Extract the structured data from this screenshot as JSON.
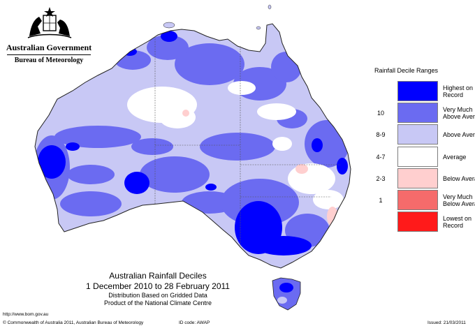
{
  "header": {
    "agency": "Australian Government",
    "bureau": "Bureau of Meteorology"
  },
  "legend": {
    "title": "Rainfall Decile Ranges",
    "items": [
      {
        "range": "",
        "label": "Highest on\nRecord",
        "color": "#0000ff"
      },
      {
        "range": "10",
        "label": "Very Much\nAbove Average",
        "color": "#6b6bf1"
      },
      {
        "range": "8-9",
        "label": "Above Average",
        "color": "#c8c8f5"
      },
      {
        "range": "4-7",
        "label": "Average",
        "color": "#ffffff"
      },
      {
        "range": "2-3",
        "label": "Below Average",
        "color": "#ffcfcf"
      },
      {
        "range": "1",
        "label": "Very Much\nBelow Average",
        "color": "#f56b6b"
      },
      {
        "range": "",
        "label": "Lowest on\nRecord",
        "color": "#ff1a1a"
      }
    ]
  },
  "map_title": {
    "title": "Australian Rainfall Deciles",
    "period": "1 December 2010 to 28 February 2011",
    "line1": "Distribution Based on Gridded Data",
    "line2": "Product of the National Climate Centre"
  },
  "footer": {
    "url": "http://www.bom.gov.au",
    "copyright": "© Commonwealth of Australia 2011, Australian Bureau of Meteorology",
    "id_code": "ID code: AWAP",
    "issued": "Issued: 21/03/2011"
  }
}
